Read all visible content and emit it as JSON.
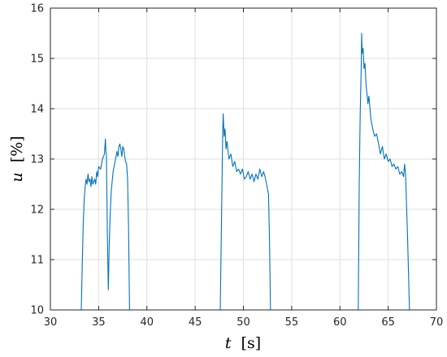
{
  "chart_data": {
    "type": "line",
    "title": "",
    "xlabel": {
      "var": "t",
      "unit": "[s]"
    },
    "ylabel": {
      "var": "u",
      "unit": "[%]"
    },
    "xlim": [
      30,
      70
    ],
    "ylim": [
      10,
      16
    ],
    "x_ticks": [
      30,
      35,
      40,
      45,
      50,
      55,
      60,
      65,
      70
    ],
    "y_ticks": [
      10,
      11,
      12,
      13,
      14,
      15,
      16
    ],
    "grid": true,
    "legend": "none",
    "series": [
      {
        "color": "#0072bd",
        "segments": [
          {
            "x": [
              33.2,
              33.3,
              33.4,
              33.5,
              33.6,
              33.7,
              33.8,
              33.9,
              34.0,
              34.1,
              34.2,
              34.3,
              34.4,
              34.5,
              34.6,
              34.7,
              34.8,
              34.9,
              35.0,
              35.2,
              35.4,
              35.6,
              35.7,
              35.75,
              35.8,
              35.9,
              36.0,
              36.1,
              36.2,
              36.3,
              36.5,
              36.7,
              36.9,
              37.0,
              37.1,
              37.2,
              37.3,
              37.4,
              37.5,
              37.6,
              37.7,
              37.8,
              37.9,
              38.0,
              38.1,
              38.2
            ],
            "y": [
              10.0,
              10.9,
              11.7,
              12.2,
              12.45,
              12.6,
              12.5,
              12.7,
              12.55,
              12.6,
              12.45,
              12.65,
              12.5,
              12.55,
              12.6,
              12.5,
              12.75,
              12.65,
              12.85,
              12.8,
              13.0,
              13.1,
              13.4,
              13.15,
              13.1,
              11.5,
              10.4,
              11.3,
              11.9,
              12.35,
              12.75,
              12.95,
              13.15,
              13.05,
              13.25,
              13.3,
              13.2,
              13.05,
              13.25,
              13.2,
              13.05,
              12.95,
              12.9,
              12.6,
              11.6,
              10.0
            ]
          },
          {
            "x": [
              47.6,
              47.7,
              47.8,
              47.85,
              47.9,
              48.0,
              48.1,
              48.2,
              48.3,
              48.5,
              48.7,
              48.9,
              49.1,
              49.3,
              49.5,
              49.7,
              49.9,
              50.1,
              50.3,
              50.5,
              50.7,
              50.9,
              51.1,
              51.3,
              51.5,
              51.7,
              51.9,
              52.1,
              52.3,
              52.5,
              52.6,
              52.7,
              52.8
            ],
            "y": [
              10.0,
              11.4,
              12.8,
              13.5,
              13.9,
              13.45,
              13.6,
              13.2,
              13.35,
              13.0,
              13.1,
              12.85,
              12.95,
              12.75,
              12.8,
              12.7,
              12.8,
              12.6,
              12.65,
              12.75,
              12.6,
              12.7,
              12.55,
              12.7,
              12.6,
              12.8,
              12.65,
              12.75,
              12.6,
              12.4,
              12.3,
              11.4,
              10.0
            ]
          },
          {
            "x": [
              61.9,
              62.0,
              62.1,
              62.2,
              62.25,
              62.3,
              62.4,
              62.5,
              62.6,
              62.7,
              62.8,
              62.9,
              63.0,
              63.2,
              63.4,
              63.6,
              63.8,
              64.0,
              64.2,
              64.4,
              64.6,
              64.8,
              65.0,
              65.2,
              65.4,
              65.6,
              65.8,
              66.0,
              66.2,
              66.4,
              66.6,
              66.7,
              66.8,
              67.0,
              67.2
            ],
            "y": [
              10.0,
              12.5,
              13.9,
              14.8,
              15.5,
              15.1,
              15.2,
              14.8,
              14.9,
              14.5,
              14.3,
              14.1,
              14.25,
              13.8,
              13.6,
              13.45,
              13.5,
              13.3,
              13.1,
              13.25,
              13.0,
              13.1,
              12.95,
              13.0,
              12.85,
              12.9,
              12.8,
              12.85,
              12.7,
              12.75,
              12.65,
              12.9,
              12.7,
              11.5,
              10.0
            ]
          }
        ]
      }
    ]
  }
}
